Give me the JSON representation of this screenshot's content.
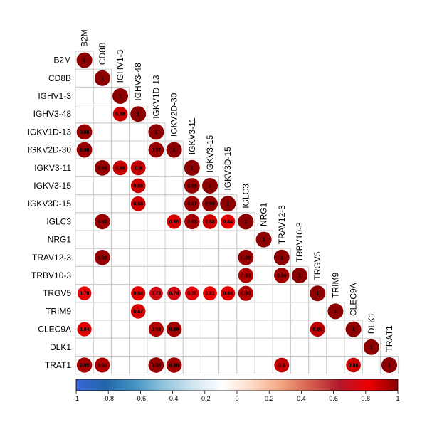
{
  "chart_data": {
    "type": "heatmap",
    "variables": [
      "B2M",
      "CD8B",
      "IGHV1-3",
      "IGHV3-48",
      "IGKV1D-13",
      "IGKV2D-30",
      "IGKV3-11",
      "IGKV3-15",
      "IGKV3D-15",
      "IGLC3",
      "NRG1",
      "TRAV12-3",
      "TRBV10-3",
      "TRGV5",
      "TRIM9",
      "CLEC9A",
      "DLK1",
      "TRAT1"
    ],
    "cells": [
      {
        "row": 0,
        "col": 0,
        "value": 1,
        "label": "1"
      },
      {
        "row": 1,
        "col": 1,
        "value": 1,
        "label": "1"
      },
      {
        "row": 2,
        "col": 2,
        "value": 1,
        "label": "1"
      },
      {
        "row": 3,
        "col": 2,
        "value": 0.88,
        "label": "0.88"
      },
      {
        "row": 3,
        "col": 3,
        "value": 1,
        "label": "1"
      },
      {
        "row": 4,
        "col": 0,
        "value": 0.98,
        "label": "0.98"
      },
      {
        "row": 4,
        "col": 4,
        "value": 1,
        "label": "1"
      },
      {
        "row": 5,
        "col": 0,
        "value": 0.98,
        "label": "0.98"
      },
      {
        "row": 5,
        "col": 4,
        "value": 0.97,
        "label": "0.97"
      },
      {
        "row": 5,
        "col": 5,
        "value": 1,
        "label": "1"
      },
      {
        "row": 6,
        "col": 1,
        "value": 0.98,
        "label": "0.98"
      },
      {
        "row": 6,
        "col": 2,
        "value": 0.89,
        "label": "0.89"
      },
      {
        "row": 6,
        "col": 3,
        "value": 0.9,
        "label": "0.9"
      },
      {
        "row": 6,
        "col": 6,
        "value": 1,
        "label": "1"
      },
      {
        "row": 7,
        "col": 3,
        "value": 0.88,
        "label": "0.88"
      },
      {
        "row": 7,
        "col": 6,
        "value": 0.98,
        "label": "0.98"
      },
      {
        "row": 7,
        "col": 7,
        "value": 1,
        "label": "1"
      },
      {
        "row": 8,
        "col": 3,
        "value": 0.88,
        "label": "0.88"
      },
      {
        "row": 8,
        "col": 6,
        "value": 0.97,
        "label": "0.97"
      },
      {
        "row": 8,
        "col": 7,
        "value": 0.99,
        "label": "0.99"
      },
      {
        "row": 8,
        "col": 8,
        "value": 1,
        "label": "1"
      },
      {
        "row": 9,
        "col": 1,
        "value": 0.97,
        "label": "0.97"
      },
      {
        "row": 9,
        "col": 5,
        "value": 0.85,
        "label": "0.85"
      },
      {
        "row": 9,
        "col": 6,
        "value": 0.95,
        "label": "0.95"
      },
      {
        "row": 9,
        "col": 7,
        "value": 0.88,
        "label": "0.88"
      },
      {
        "row": 9,
        "col": 8,
        "value": 0.84,
        "label": "0.84"
      },
      {
        "row": 9,
        "col": 9,
        "value": 1,
        "label": "1"
      },
      {
        "row": 10,
        "col": 10,
        "value": 1,
        "label": "1"
      },
      {
        "row": 11,
        "col": 1,
        "value": 0.97,
        "label": "0.97"
      },
      {
        "row": 11,
        "col": 9,
        "value": 0.98,
        "label": "0.98"
      },
      {
        "row": 11,
        "col": 11,
        "value": 1,
        "label": "1"
      },
      {
        "row": 12,
        "col": 9,
        "value": 0.93,
        "label": "0.93"
      },
      {
        "row": 12,
        "col": 11,
        "value": 0.96,
        "label": "0.96"
      },
      {
        "row": 12,
        "col": 12,
        "value": 1,
        "label": "1"
      },
      {
        "row": 13,
        "col": 0,
        "value": 0.79,
        "label": "0.79"
      },
      {
        "row": 13,
        "col": 3,
        "value": 0.84,
        "label": "0.84"
      },
      {
        "row": 13,
        "col": 4,
        "value": 0.73,
        "label": "0.73"
      },
      {
        "row": 13,
        "col": 5,
        "value": 0.74,
        "label": "0.74"
      },
      {
        "row": 13,
        "col": 6,
        "value": 0.78,
        "label": "0.78"
      },
      {
        "row": 13,
        "col": 7,
        "value": 0.81,
        "label": "0.81"
      },
      {
        "row": 13,
        "col": 8,
        "value": 0.84,
        "label": "0.84"
      },
      {
        "row": 13,
        "col": 9,
        "value": 0.93,
        "label": "0.93"
      },
      {
        "row": 13,
        "col": 13,
        "value": 1,
        "label": "1"
      },
      {
        "row": 14,
        "col": 3,
        "value": 0.87,
        "label": "0.87"
      },
      {
        "row": 14,
        "col": 14,
        "value": 1,
        "label": "1"
      },
      {
        "row": 15,
        "col": 0,
        "value": 0.84,
        "label": "0.84"
      },
      {
        "row": 15,
        "col": 4,
        "value": 0.93,
        "label": "0.93"
      },
      {
        "row": 15,
        "col": 5,
        "value": 0.96,
        "label": "0.96"
      },
      {
        "row": 15,
        "col": 13,
        "value": 0.91,
        "label": "0.91"
      },
      {
        "row": 15,
        "col": 15,
        "value": 1,
        "label": "1"
      },
      {
        "row": 16,
        "col": 16,
        "value": 1,
        "label": "1"
      },
      {
        "row": 17,
        "col": 0,
        "value": 0.95,
        "label": "0.95"
      },
      {
        "row": 17,
        "col": 1,
        "value": 0.93,
        "label": "0.93"
      },
      {
        "row": 17,
        "col": 4,
        "value": 0.98,
        "label": "0.98"
      },
      {
        "row": 17,
        "col": 5,
        "value": 0.96,
        "label": "0.96"
      },
      {
        "row": 17,
        "col": 11,
        "value": 0.9,
        "label": "0.9"
      },
      {
        "row": 17,
        "col": 15,
        "value": 0.88,
        "label": "0.88"
      },
      {
        "row": 17,
        "col": 17,
        "value": 1,
        "label": "1"
      }
    ],
    "colorbar": {
      "range": [
        -1,
        1
      ],
      "ticks": [
        "-1",
        "-0.8",
        "-0.6",
        "-0.4",
        "-0.2",
        "0",
        "0.2",
        "0.4",
        "0.6",
        "0.8",
        "1"
      ],
      "colors": [
        "#3a66d9",
        "#2166ac",
        "#4393c3",
        "#92c5de",
        "#d1e5f0",
        "#ffffff",
        "#fddbc7",
        "#f4a582",
        "#d6604d",
        "#b2182b",
        "#ee0000",
        "#8b0000"
      ]
    },
    "grid": true,
    "layout": "lower-triangle"
  }
}
